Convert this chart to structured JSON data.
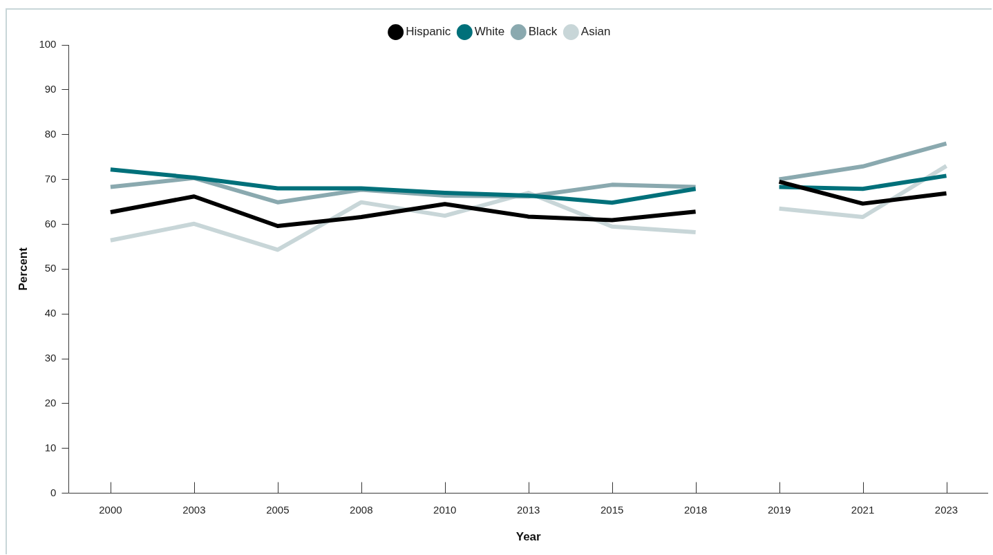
{
  "chart_data": {
    "type": "line",
    "xlabel": "Year",
    "ylabel": "Percent",
    "categories": [
      "2000",
      "2003",
      "2005",
      "2008",
      "2010",
      "2013",
      "2015",
      "2018",
      "2019",
      "2021",
      "2023"
    ],
    "ylim": [
      0,
      100
    ],
    "yticks": [
      0,
      10,
      20,
      30,
      40,
      50,
      60,
      70,
      80,
      90,
      100
    ],
    "legend": "top",
    "marker": "none",
    "line_style": "solid",
    "series": [
      {
        "name": "Hispanic",
        "color": "#000000",
        "values": [
          62.7,
          66.2,
          59.6,
          61.6,
          64.5,
          61.7,
          60.9,
          62.8,
          null,
          null,
          null
        ]
      },
      {
        "name": "White",
        "color": "#00707a",
        "values": [
          72.2,
          70.4,
          68.0,
          68.0,
          67.0,
          66.4,
          64.8,
          67.9,
          null,
          null,
          null
        ]
      },
      {
        "name": "Black",
        "color": "#8aa9af",
        "values": [
          68.3,
          70.3,
          64.9,
          67.7,
          66.4,
          66.2,
          68.8,
          68.3,
          null,
          null,
          null
        ]
      },
      {
        "name": "Asian",
        "color": "#c8d6d8",
        "values": [
          56.4,
          60.1,
          54.3,
          64.9,
          61.9,
          67.0,
          59.5,
          58.2,
          null,
          null,
          null
        ]
      },
      {
        "color": "#000000",
        "values": [
          null,
          null,
          null,
          null,
          null,
          null,
          null,
          null,
          69.5,
          64.6,
          66.9
        ]
      },
      {
        "color": "#00707a",
        "values": [
          null,
          null,
          null,
          null,
          null,
          null,
          null,
          null,
          68.3,
          67.9,
          70.8
        ]
      },
      {
        "color": "#8aa9af",
        "values": [
          null,
          null,
          null,
          null,
          null,
          null,
          null,
          null,
          70.0,
          72.9,
          78.0
        ]
      },
      {
        "color": "#c8d6d8",
        "values": [
          null,
          null,
          null,
          null,
          null,
          null,
          null,
          null,
          63.5,
          61.6,
          73.0
        ]
      }
    ]
  }
}
